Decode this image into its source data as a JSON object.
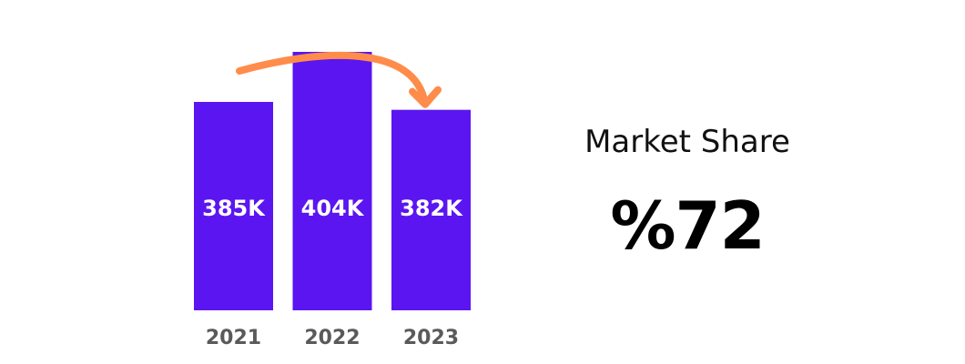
{
  "chart_data": {
    "type": "bar",
    "categories": [
      "2021",
      "2022",
      "2023"
    ],
    "values": [
      385,
      404,
      382
    ],
    "data_labels": [
      "385K",
      "404K",
      "382K"
    ],
    "colors": {
      "bar": "#5b15f0",
      "arrow": "#ff8c4a"
    },
    "annotations": [
      {
        "type": "arrow",
        "from": "2021",
        "to": "2023"
      }
    ]
  },
  "kpi": {
    "title": "Market Share",
    "value": "%72"
  }
}
